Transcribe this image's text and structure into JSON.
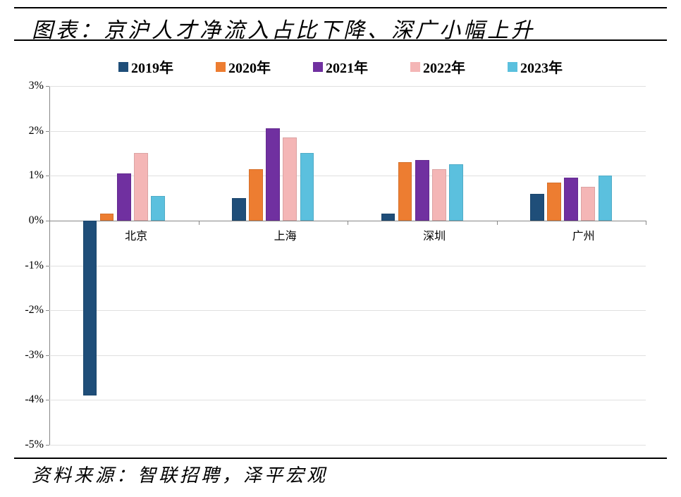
{
  "title": "图表：京沪人才净流入占比下降、深广小幅上升",
  "source": "资料来源：智联招聘，泽平宏观",
  "chart": {
    "type": "bar",
    "background_color": "#ffffff",
    "grid_color": "#e0e0e0",
    "axis_color": "#888888",
    "rule_color": "#000000",
    "title_fontsize": 30,
    "source_fontsize": 26,
    "legend_fontsize": 20,
    "tick_fontsize": 16,
    "category_fontsize": 16,
    "font_family_cn": "SimSun",
    "font_family_num": "Times New Roman",
    "categories": [
      "北京",
      "上海",
      "深圳",
      "广州"
    ],
    "series": [
      {
        "name": "2019年",
        "color": "#1f4e79",
        "values": [
          -3.9,
          0.5,
          0.15,
          0.6
        ]
      },
      {
        "name": "2020年",
        "color": "#ed7d31",
        "values": [
          0.15,
          1.15,
          1.3,
          0.85
        ]
      },
      {
        "name": "2021年",
        "color": "#7030a0",
        "values": [
          1.05,
          2.05,
          1.35,
          0.95
        ]
      },
      {
        "name": "2022年",
        "color": "#f4b6b6",
        "values": [
          1.5,
          1.85,
          1.15,
          0.75
        ]
      },
      {
        "name": "2023年",
        "color": "#5bc0de",
        "values": [
          0.55,
          1.5,
          1.25,
          1.0
        ]
      }
    ],
    "y": {
      "min": -5,
      "max": 3,
      "step": 1,
      "format_suffix": "%"
    },
    "bar_group_gap_ratio": 0.45,
    "bar_inner_gap_ratio": 0.15
  }
}
